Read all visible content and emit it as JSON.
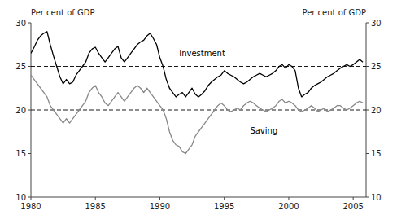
{
  "chart_data": {
    "type": "line",
    "ylabel": "Per cent of GDP",
    "y2label": "Per cent of GDP",
    "xlim": [
      1980,
      2006
    ],
    "xticks": [
      1980,
      1985,
      1990,
      1995,
      2000,
      2005
    ],
    "ylim": [
      10,
      30
    ],
    "yticks": [
      10,
      15,
      20,
      25,
      30
    ],
    "y2lim": [
      10,
      30
    ],
    "y2ticks": [
      10,
      15,
      20,
      25,
      30
    ],
    "grid": false,
    "x": [
      1980.0,
      1980.25,
      1980.5,
      1980.75,
      1981.0,
      1981.25,
      1981.5,
      1981.75,
      1982.0,
      1982.25,
      1982.5,
      1982.75,
      1983.0,
      1983.25,
      1983.5,
      1983.75,
      1984.0,
      1984.25,
      1984.5,
      1984.75,
      1985.0,
      1985.25,
      1985.5,
      1985.75,
      1986.0,
      1986.25,
      1986.5,
      1986.75,
      1987.0,
      1987.25,
      1987.5,
      1987.75,
      1988.0,
      1988.25,
      1988.5,
      1988.75,
      1989.0,
      1989.25,
      1989.5,
      1989.75,
      1990.0,
      1990.25,
      1990.5,
      1990.75,
      1991.0,
      1991.25,
      1991.5,
      1991.75,
      1992.0,
      1992.25,
      1992.5,
      1992.75,
      1993.0,
      1993.25,
      1993.5,
      1993.75,
      1994.0,
      1994.25,
      1994.5,
      1994.75,
      1995.0,
      1995.25,
      1995.5,
      1995.75,
      1996.0,
      1996.25,
      1996.5,
      1996.75,
      1997.0,
      1997.25,
      1997.5,
      1997.75,
      1998.0,
      1998.25,
      1998.5,
      1998.75,
      1999.0,
      1999.25,
      1999.5,
      1999.75,
      2000.0,
      2000.25,
      2000.5,
      2000.75,
      2001.0,
      2001.25,
      2001.5,
      2001.75,
      2002.0,
      2002.25,
      2002.5,
      2002.75,
      2003.0,
      2003.25,
      2003.5,
      2003.75,
      2004.0,
      2004.25,
      2004.5,
      2004.75,
      2005.0,
      2005.25,
      2005.5,
      2005.75
    ],
    "series": [
      {
        "color": "#000000",
        "values": [
          26.5,
          27.2,
          28.0,
          28.5,
          28.8,
          29.0,
          27.5,
          26.2,
          25.0,
          23.8,
          23.0,
          23.5,
          23.0,
          23.2,
          24.0,
          24.5,
          25.0,
          25.5,
          26.5,
          27.0,
          27.2,
          26.5,
          26.0,
          25.5,
          26.0,
          26.5,
          27.0,
          27.3,
          26.0,
          25.5,
          26.0,
          26.5,
          27.0,
          27.5,
          27.8,
          28.0,
          28.5,
          28.8,
          28.2,
          27.5,
          26.0,
          25.0,
          23.5,
          22.5,
          22.0,
          21.5,
          21.8,
          22.0,
          21.5,
          22.0,
          22.5,
          21.8,
          21.5,
          21.8,
          22.2,
          22.8,
          23.2,
          23.5,
          23.8,
          24.0,
          24.5,
          24.2,
          24.0,
          23.8,
          23.5,
          23.2,
          23.0,
          23.2,
          23.5,
          23.8,
          24.0,
          24.2,
          24.0,
          23.8,
          24.0,
          24.2,
          24.5,
          25.0,
          25.2,
          24.8,
          25.2,
          25.0,
          24.5,
          22.5,
          21.5,
          21.8,
          22.0,
          22.5,
          22.8,
          23.0,
          23.2,
          23.5,
          23.8,
          24.0,
          24.2,
          24.5,
          24.8,
          25.0,
          25.2,
          25.0,
          25.2,
          25.5,
          25.8,
          25.5
        ]
      },
      {
        "color": "#888888",
        "values": [
          24.0,
          23.5,
          23.0,
          22.5,
          22.0,
          21.5,
          20.5,
          20.0,
          19.5,
          19.0,
          18.5,
          19.0,
          18.5,
          19.0,
          19.5,
          20.0,
          20.5,
          21.0,
          22.0,
          22.5,
          22.8,
          22.0,
          21.5,
          20.8,
          20.5,
          21.0,
          21.5,
          22.0,
          21.5,
          21.0,
          21.5,
          22.0,
          22.5,
          22.8,
          22.5,
          22.0,
          22.5,
          22.0,
          21.5,
          21.0,
          20.5,
          20.0,
          19.0,
          17.5,
          16.5,
          16.0,
          15.8,
          15.2,
          15.0,
          15.5,
          16.0,
          17.0,
          17.5,
          18.0,
          18.5,
          19.0,
          19.5,
          20.0,
          20.5,
          20.8,
          20.5,
          20.0,
          19.8,
          20.0,
          20.2,
          20.0,
          20.5,
          20.8,
          21.0,
          20.8,
          20.5,
          20.2,
          20.0,
          19.8,
          20.0,
          20.2,
          20.5,
          21.0,
          21.2,
          20.8,
          21.0,
          20.8,
          20.5,
          20.0,
          19.8,
          20.0,
          20.2,
          20.5,
          20.2,
          19.8,
          20.0,
          20.2,
          19.8,
          20.0,
          20.2,
          20.5,
          20.5,
          20.2,
          20.0,
          20.2,
          20.5,
          20.8,
          21.0,
          20.8
        ]
      }
    ],
    "hlines": [
      {
        "value": 25,
        "color": "#000000",
        "line_style": "dashed"
      },
      {
        "value": 20,
        "color": "#000000",
        "line_style": "dashed"
      }
    ],
    "annotations": [
      {
        "text": "Investment",
        "x": 1991.5,
        "y": 26.2
      },
      {
        "text": "Saving",
        "x": 1997.0,
        "y": 17.3
      }
    ]
  }
}
